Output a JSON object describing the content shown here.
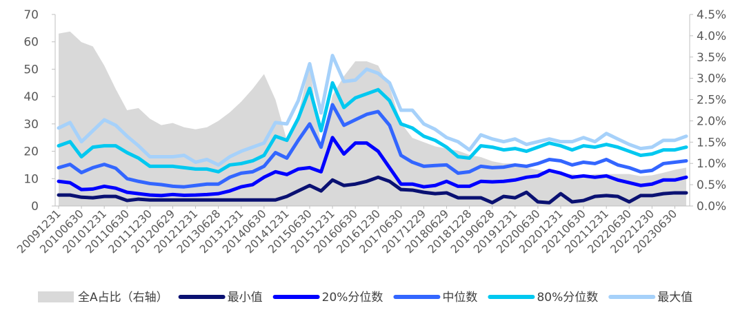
{
  "chart_data": {
    "type": "line",
    "x": [
      "20091231",
      "20100331",
      "20100630",
      "20100930",
      "20101231",
      "20110331",
      "20110630",
      "20110930",
      "20111230",
      "20120330",
      "20120629",
      "20120928",
      "20121231",
      "20130329",
      "20130628",
      "20130930",
      "20131231",
      "20140331",
      "20140630",
      "20140930",
      "20141231",
      "20150331",
      "20150630",
      "20150930",
      "20151231",
      "20160331",
      "20160630",
      "20160930",
      "20161230",
      "20170331",
      "20170630",
      "20170929",
      "20171229",
      "20180330",
      "20180629",
      "20180928",
      "20181228",
      "20190329",
      "20190628",
      "20190930",
      "20191231",
      "20200331",
      "20200630",
      "20200930",
      "20201231",
      "20210331",
      "20210630",
      "20210930",
      "20211231",
      "20220331",
      "20220630",
      "20220930",
      "20221230",
      "20230331",
      "20230630",
      "20230930"
    ],
    "x_tick_labels": [
      "20091231",
      "20100630",
      "20101231",
      "20110630",
      "20111230",
      "20120629",
      "20121231",
      "20130628",
      "20131231",
      "20140630",
      "20141231",
      "20150630",
      "20151231",
      "20160630",
      "20161230",
      "20170630",
      "20171229",
      "20180629",
      "20181228",
      "20190628",
      "20191231",
      "20200630",
      "20201231",
      "20210630",
      "20211231",
      "20220630",
      "20221230",
      "20230630"
    ],
    "y_left": {
      "min": 0,
      "max": 70,
      "ticks": [
        "0",
        "10",
        "20",
        "30",
        "40",
        "50",
        "60",
        "70"
      ]
    },
    "y_right": {
      "min": 0,
      "max": 4.5,
      "ticks": [
        "0.0%",
        "0.5%",
        "1.0%",
        "1.5%",
        "2.0%",
        "2.5%",
        "3.0%",
        "3.5%",
        "4.0%",
        "4.5%"
      ]
    },
    "area": {
      "name": "全A占比（右轴）",
      "color": "#d9d9d9",
      "axis": "right",
      "values": [
        4.05,
        4.1,
        3.85,
        3.75,
        3.3,
        2.75,
        2.25,
        2.3,
        2.05,
        1.9,
        1.95,
        1.85,
        1.8,
        1.85,
        2.0,
        2.2,
        2.45,
        2.75,
        3.1,
        2.5,
        1.55,
        2.15,
        3.3,
        1.4,
        2.6,
        3.05,
        3.4,
        3.4,
        3.3,
        2.8,
        1.95,
        1.6,
        1.5,
        1.4,
        1.35,
        1.3,
        1.2,
        1.15,
        1.05,
        1.0,
        1.0,
        0.9,
        0.85,
        0.8,
        0.75,
        0.75,
        0.7,
        0.75,
        0.75,
        0.75,
        0.75,
        0.7,
        0.72,
        0.78,
        0.85,
        0.9
      ]
    },
    "series": [
      {
        "name": "最小值",
        "color": "#0a1172",
        "values": [
          4,
          4,
          3.2,
          3,
          3.5,
          3.5,
          2,
          2.5,
          2.2,
          2.2,
          2.2,
          2.2,
          2.2,
          2.2,
          2.2,
          2.2,
          2.2,
          2.2,
          2.2,
          2.2,
          3.5,
          5.5,
          7.5,
          5.5,
          9.5,
          7.5,
          8,
          9,
          10.5,
          9,
          6,
          5.8,
          5,
          4.5,
          4.8,
          3,
          3,
          3,
          1.2,
          3.5,
          3,
          5,
          1.5,
          1.2,
          4.5,
          1.5,
          2,
          3.5,
          3.8,
          3.5,
          1.5,
          3.8,
          3.8,
          4.5,
          4.8,
          4.8
        ]
      },
      {
        "name": "20%分位数",
        "color": "#0000ff",
        "values": [
          9,
          8.5,
          6,
          6.2,
          7.2,
          6.5,
          5,
          4.5,
          4,
          3.8,
          4.2,
          3.9,
          4,
          4.2,
          4.5,
          5.5,
          7,
          7.8,
          10.5,
          12.5,
          11.5,
          13.5,
          14,
          12.5,
          25,
          19,
          23,
          23,
          20,
          14,
          8,
          8,
          7,
          7.5,
          9,
          7.2,
          7.2,
          9,
          8.8,
          9,
          9.5,
          10.5,
          11,
          13,
          12,
          10.5,
          11,
          10.5,
          11,
          9.5,
          8.5,
          7.5,
          8,
          9.5,
          9.5,
          10.5
        ]
      },
      {
        "name": "中位数",
        "color": "#3366ff",
        "values": [
          14,
          15.2,
          12.2,
          14,
          15.2,
          13.8,
          10,
          9,
          8.2,
          7.8,
          7.2,
          7,
          7.5,
          8,
          8,
          10.5,
          12,
          12.5,
          14.5,
          19.5,
          17.5,
          24,
          30,
          21.5,
          37,
          29.5,
          31.5,
          33.5,
          34.5,
          29.5,
          18.5,
          16,
          14.5,
          14.8,
          15,
          12,
          12.5,
          14.5,
          14,
          14.2,
          15,
          14.5,
          15.5,
          17,
          16.5,
          15,
          16,
          15.5,
          17,
          15,
          14,
          12.5,
          13,
          15.5,
          16,
          16.5
        ]
      },
      {
        "name": "80%分位数",
        "color": "#00c8f0",
        "values": [
          22,
          23.5,
          18,
          21.5,
          22,
          22,
          19.5,
          17.5,
          14.5,
          14.5,
          14.5,
          14,
          13.5,
          13.5,
          12.5,
          15,
          15.5,
          16.5,
          18.5,
          25.5,
          24,
          32,
          43,
          27.5,
          45,
          36,
          39.5,
          41,
          42.5,
          38.5,
          30,
          28.5,
          25.5,
          24,
          21.5,
          18,
          17.5,
          22,
          21.5,
          20.5,
          21,
          20,
          21.5,
          23,
          22,
          20.5,
          22,
          21.5,
          22.5,
          21.5,
          20,
          18.5,
          19,
          20.5,
          20.5,
          21.5
        ]
      },
      {
        "name": "最大值",
        "color": "#a6d1fa",
        "values": [
          28.5,
          30.5,
          23.5,
          27.5,
          31.5,
          29.5,
          25.5,
          22,
          18,
          18,
          18,
          18.5,
          16,
          17,
          15,
          18,
          20,
          21.5,
          23,
          30.5,
          30,
          38.5,
          52,
          34,
          55,
          45.5,
          46,
          50,
          48.5,
          45,
          35,
          35,
          30,
          28,
          25,
          23.5,
          20.5,
          26,
          24.5,
          23.5,
          24.5,
          22.5,
          23.5,
          24.5,
          23.5,
          23.5,
          25,
          23.5,
          26.5,
          24.5,
          22.5,
          21,
          21.5,
          24,
          24,
          25.5
        ]
      }
    ],
    "legend_position": "bottom"
  }
}
